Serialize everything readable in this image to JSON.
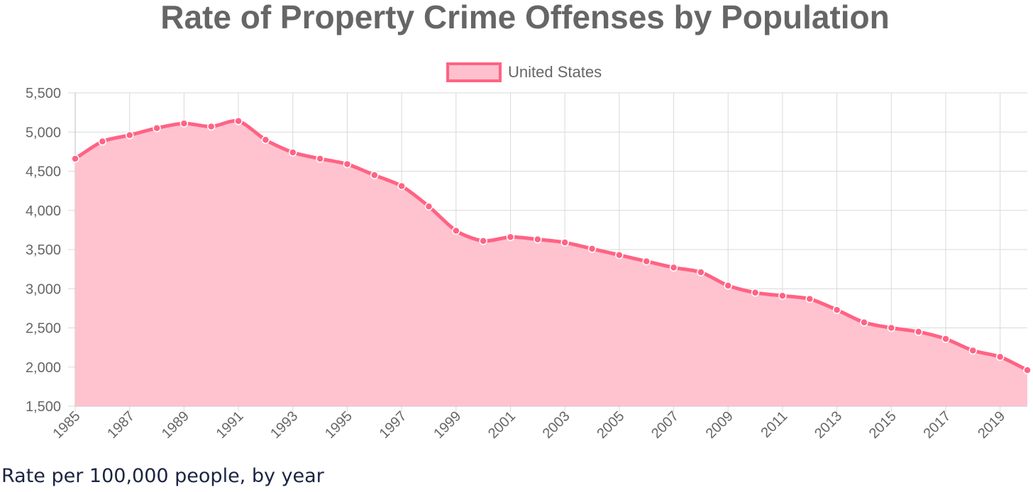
{
  "chart_data": {
    "type": "area",
    "title": "Rate of Property Crime Offenses by Population",
    "x": [
      1985,
      1986,
      1987,
      1988,
      1989,
      1990,
      1991,
      1992,
      1993,
      1994,
      1995,
      1996,
      1997,
      1998,
      1999,
      2000,
      2001,
      2002,
      2003,
      2004,
      2005,
      2006,
      2007,
      2008,
      2009,
      2010,
      2011,
      2012,
      2013,
      2014,
      2015,
      2016,
      2017,
      2018,
      2019,
      2020
    ],
    "x_tick_labels": [
      "1985",
      "1987",
      "1989",
      "1991",
      "1993",
      "1995",
      "1997",
      "1999",
      "2001",
      "2003",
      "2005",
      "2007",
      "2009",
      "2011",
      "2013",
      "2015",
      "2017",
      "2019"
    ],
    "y_tick_labels": [
      "5,500",
      "5,000",
      "4,500",
      "4,000",
      "3,500",
      "3,000",
      "2,500",
      "2,000",
      "1,500"
    ],
    "y_ticks": [
      5500,
      5000,
      4500,
      4000,
      3500,
      3000,
      2500,
      2000,
      1500
    ],
    "ylim": [
      1500,
      5500
    ],
    "grid": true,
    "legend_position": "top",
    "series": [
      {
        "name": "United States",
        "color": "#ff6384",
        "fill": "#ffc0cd",
        "values": [
          4660,
          4880,
          4960,
          5050,
          5110,
          5070,
          5140,
          4900,
          4740,
          4660,
          4590,
          4450,
          4310,
          4050,
          3740,
          3610,
          3660,
          3630,
          3590,
          3510,
          3430,
          3350,
          3270,
          3210,
          3040,
          2950,
          2910,
          2870,
          2730,
          2570,
          2500,
          2450,
          2360,
          2210,
          2130,
          1960
        ]
      }
    ],
    "caption": "Rate per 100,000 people, by year"
  }
}
